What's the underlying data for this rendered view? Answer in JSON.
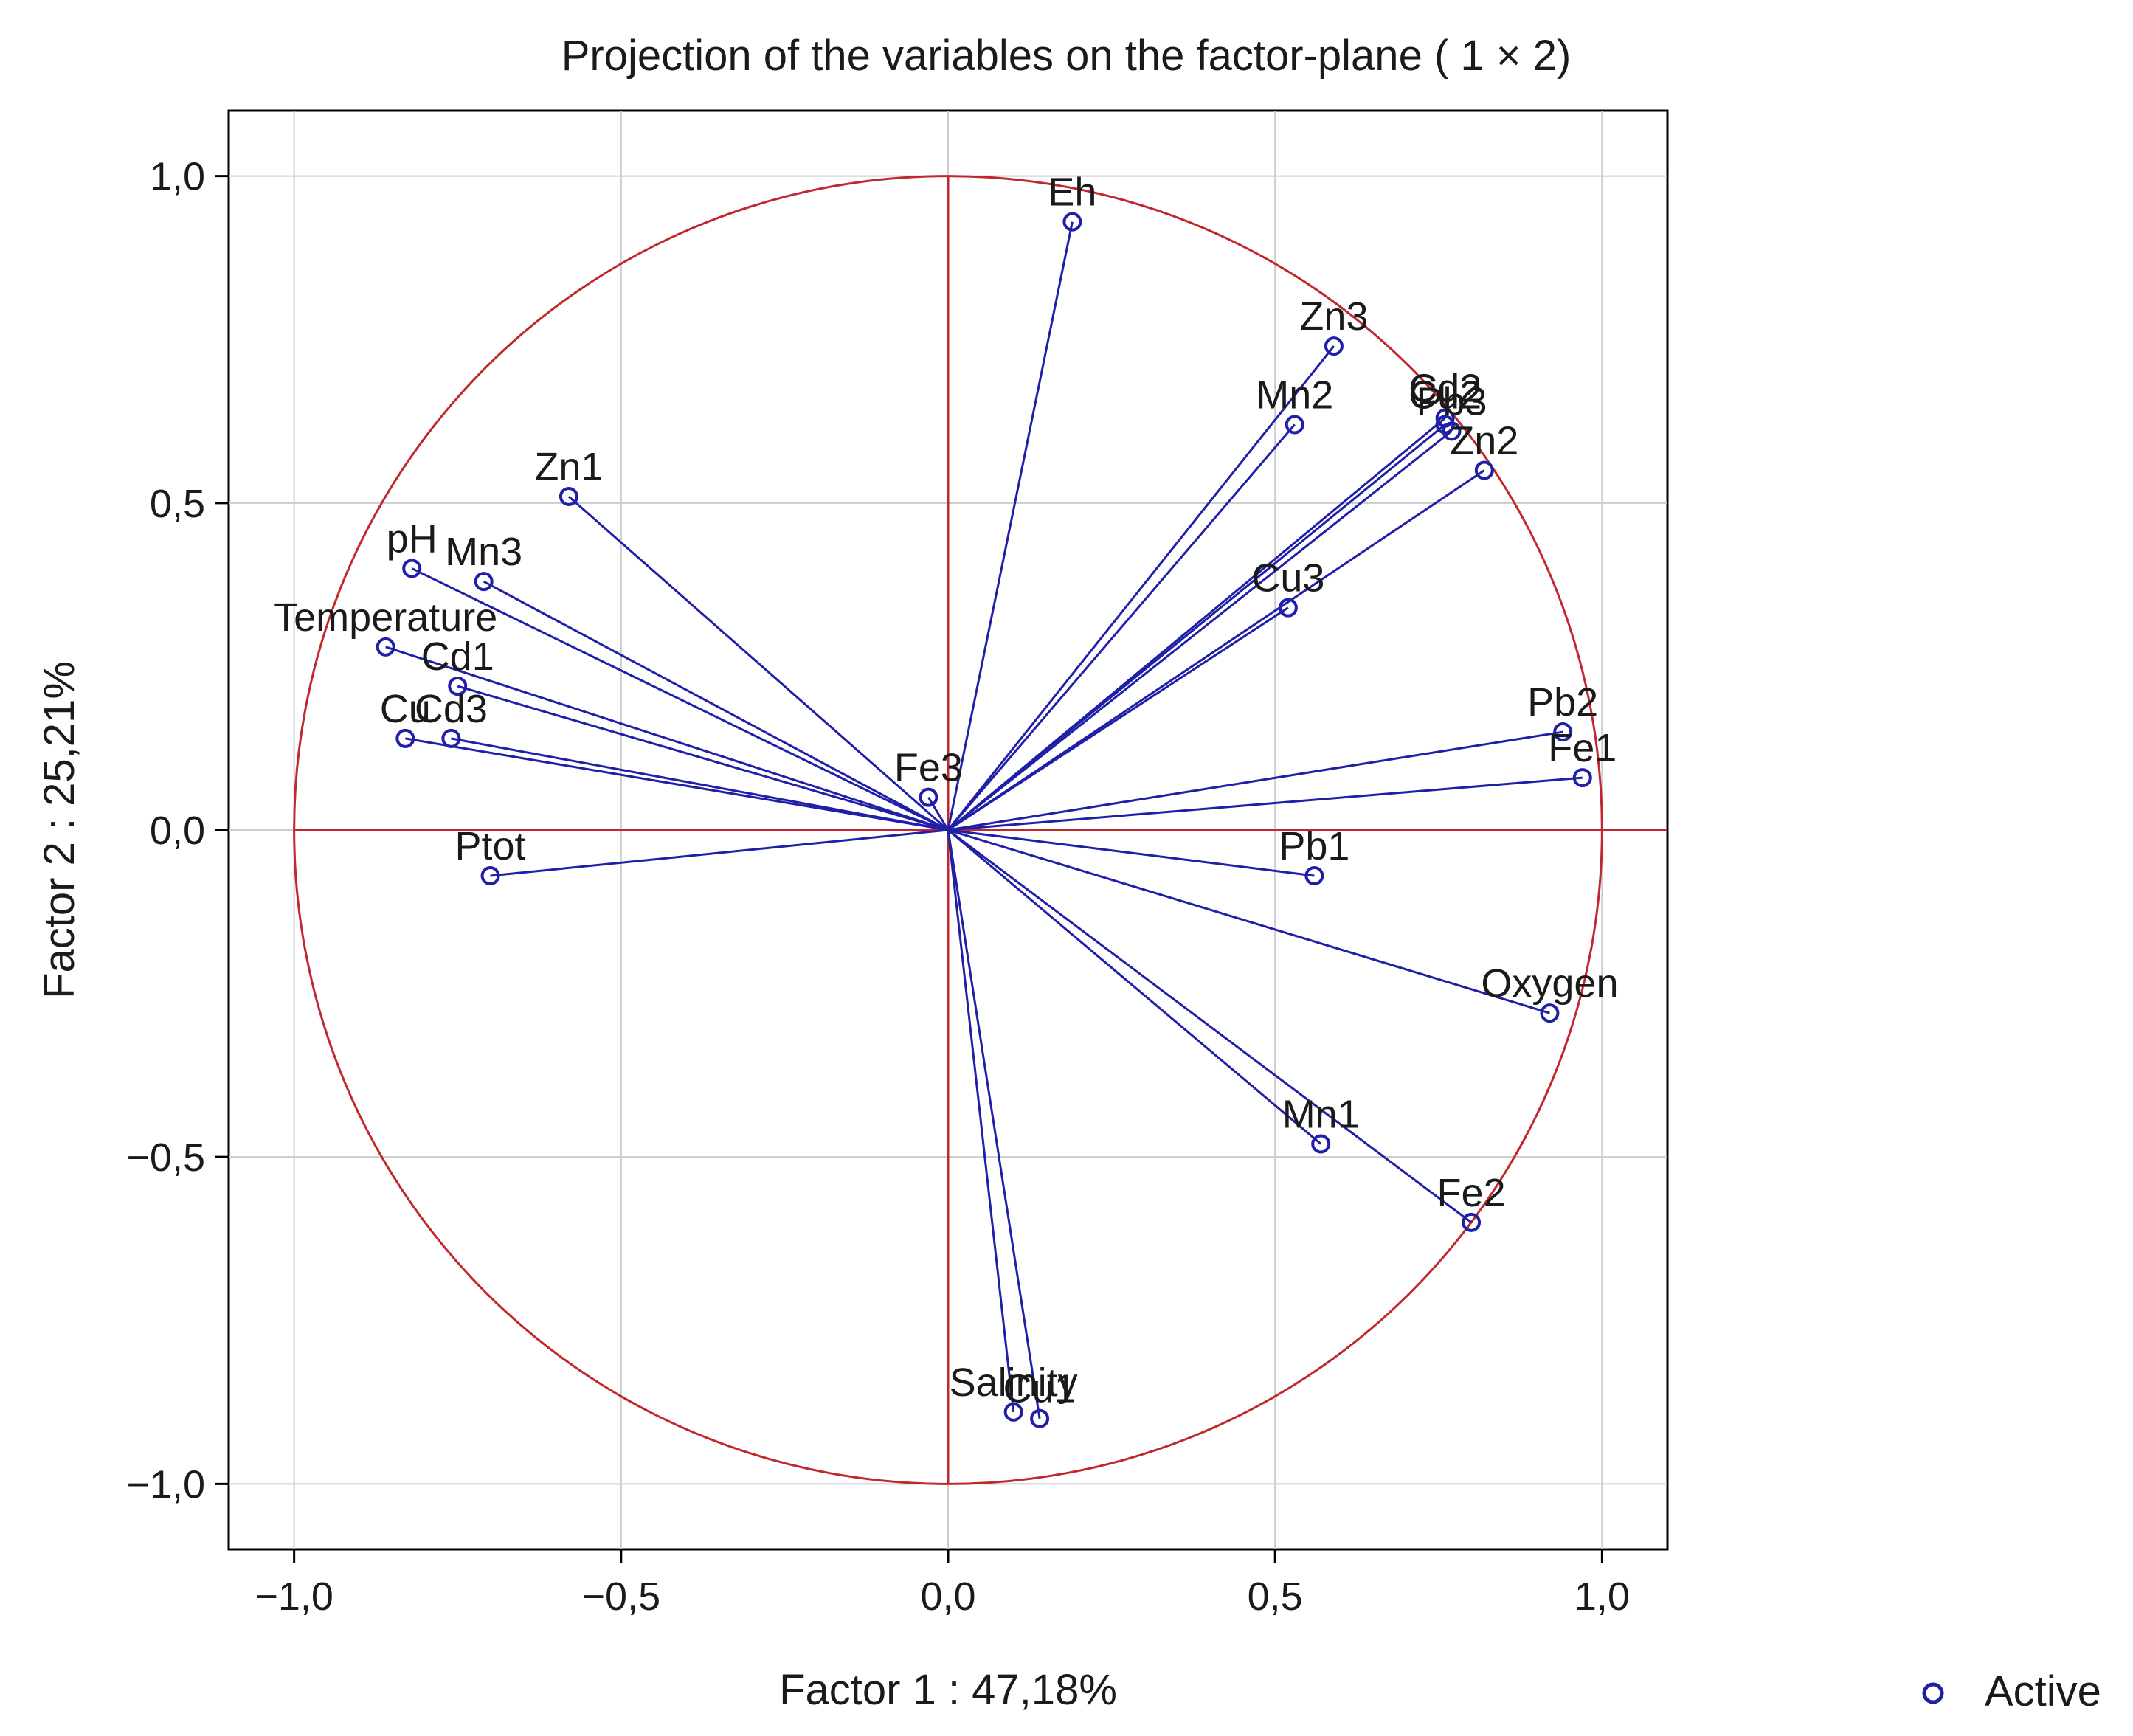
{
  "chart_data": {
    "type": "scatter",
    "title": "Projection of the variables on the factor-plane (  1 × 2)",
    "xlabel": "Factor 1 : 47,18%",
    "ylabel": "Factor 2 : 25,21%",
    "xlim": [
      -1.1,
      1.1
    ],
    "ylim": [
      -1.1,
      1.1
    ],
    "xticks": [
      -1.0,
      -0.5,
      0.0,
      0.5,
      1.0
    ],
    "yticks": [
      1.0,
      0.5,
      0.0,
      -0.5,
      -1.0
    ],
    "xtick_labels": [
      "−1,0",
      "−0,5",
      "0,0",
      "0,5",
      "1,0"
    ],
    "ytick_labels": [
      "1,0",
      "0,5",
      "0,0",
      "−0,5",
      "−1,0"
    ],
    "grid": true,
    "unit_circle": true,
    "legend": {
      "position": "bottom-right",
      "entries": [
        "Active"
      ]
    },
    "colors": {
      "vector": "#1f1fa8",
      "circle": "#c0282d",
      "axes": "#c0282d",
      "grid": "#cccccc"
    },
    "points": [
      {
        "label": "Eh",
        "x": 0.19,
        "y": 0.93
      },
      {
        "label": "Zn3",
        "x": 0.59,
        "y": 0.74
      },
      {
        "label": "Mn2",
        "x": 0.53,
        "y": 0.62
      },
      {
        "label": "Cd2",
        "x": 0.76,
        "y": 0.63
      },
      {
        "label": "Cu2",
        "x": 0.76,
        "y": 0.62
      },
      {
        "label": "Pb3",
        "x": 0.77,
        "y": 0.61
      },
      {
        "label": "Zn2",
        "x": 0.82,
        "y": 0.55
      },
      {
        "label": "Cu3",
        "x": 0.52,
        "y": 0.34
      },
      {
        "label": "Pb2",
        "x": 0.94,
        "y": 0.15
      },
      {
        "label": "Fe1",
        "x": 0.97,
        "y": 0.08
      },
      {
        "label": "Fe3",
        "x": -0.03,
        "y": 0.05
      },
      {
        "label": "Pb1",
        "x": 0.56,
        "y": -0.07
      },
      {
        "label": "Oxygen",
        "x": 0.92,
        "y": -0.28
      },
      {
        "label": "Mn1",
        "x": 0.57,
        "y": -0.48
      },
      {
        "label": "Fe2",
        "x": 0.8,
        "y": -0.6
      },
      {
        "label": "Salinity",
        "x": 0.1,
        "y": -0.89
      },
      {
        "label": "Cu1",
        "x": 0.14,
        "y": -0.9
      },
      {
        "label": "Zn1",
        "x": -0.58,
        "y": 0.51
      },
      {
        "label": "pH",
        "x": -0.82,
        "y": 0.4
      },
      {
        "label": "Mn3",
        "x": -0.71,
        "y": 0.38
      },
      {
        "label": "Temperature",
        "x": -0.86,
        "y": 0.28
      },
      {
        "label": "Cd1",
        "x": -0.75,
        "y": 0.22
      },
      {
        "label": "Cu",
        "x": -0.83,
        "y": 0.14
      },
      {
        "label": "Cd3",
        "x": -0.76,
        "y": 0.14
      },
      {
        "label": "Ptot",
        "x": -0.7,
        "y": -0.07
      }
    ]
  }
}
